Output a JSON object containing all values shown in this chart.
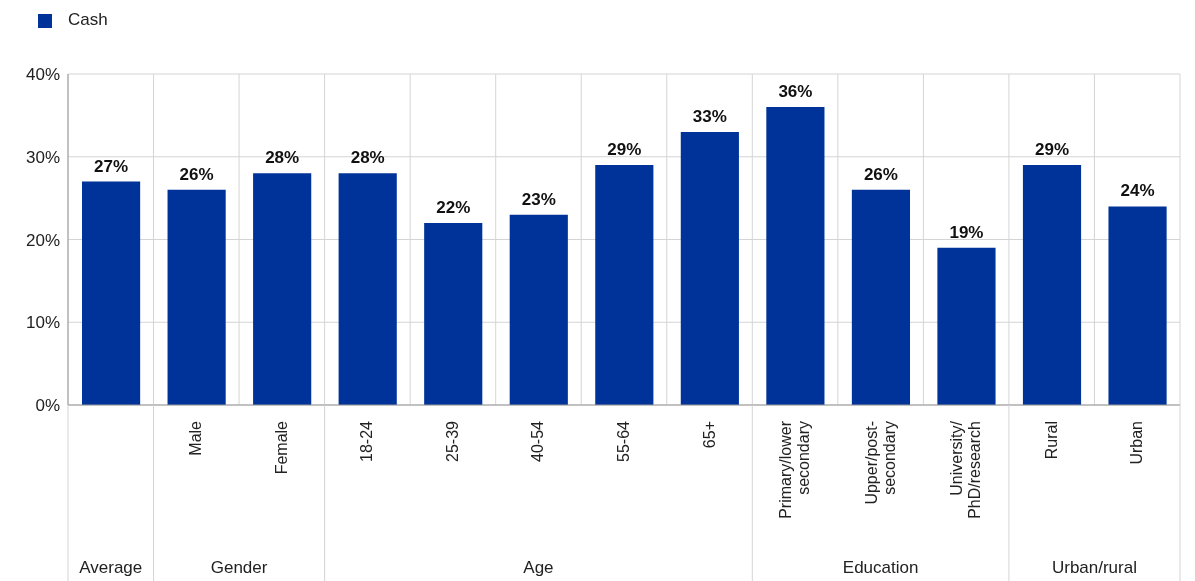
{
  "chart_data": {
    "type": "bar",
    "categories": [
      null,
      "Male",
      "Female",
      "18-24",
      "25-39",
      "40-54",
      "55-64",
      "65+",
      "Primary/lower secondary",
      "Upper/post-secondary",
      "University/PhD/research",
      "Rural",
      "Urban"
    ],
    "series": [
      {
        "name": "Cash",
        "color": "#003399",
        "values": [
          27,
          26,
          28,
          28,
          22,
          23,
          29,
          33,
          36,
          26,
          19,
          29,
          24
        ],
        "value_labels": [
          "27%",
          "26%",
          "28%",
          "28%",
          "22%",
          "23%",
          "29%",
          "33%",
          "36%",
          "26%",
          "19%",
          "29%",
          "24%"
        ]
      }
    ],
    "ylim": [
      0,
      40
    ],
    "yticks": [
      {
        "value": 0,
        "label": "0%"
      },
      {
        "value": 10,
        "label": "10%"
      },
      {
        "value": 20,
        "label": "20%"
      },
      {
        "value": 30,
        "label": "30%"
      },
      {
        "value": 40,
        "label": "40%"
      }
    ],
    "grid": true,
    "legend": "top left",
    "annotations": [
      "Average",
      "Gender",
      "Age",
      "Education",
      "Urban/rural"
    ]
  }
}
